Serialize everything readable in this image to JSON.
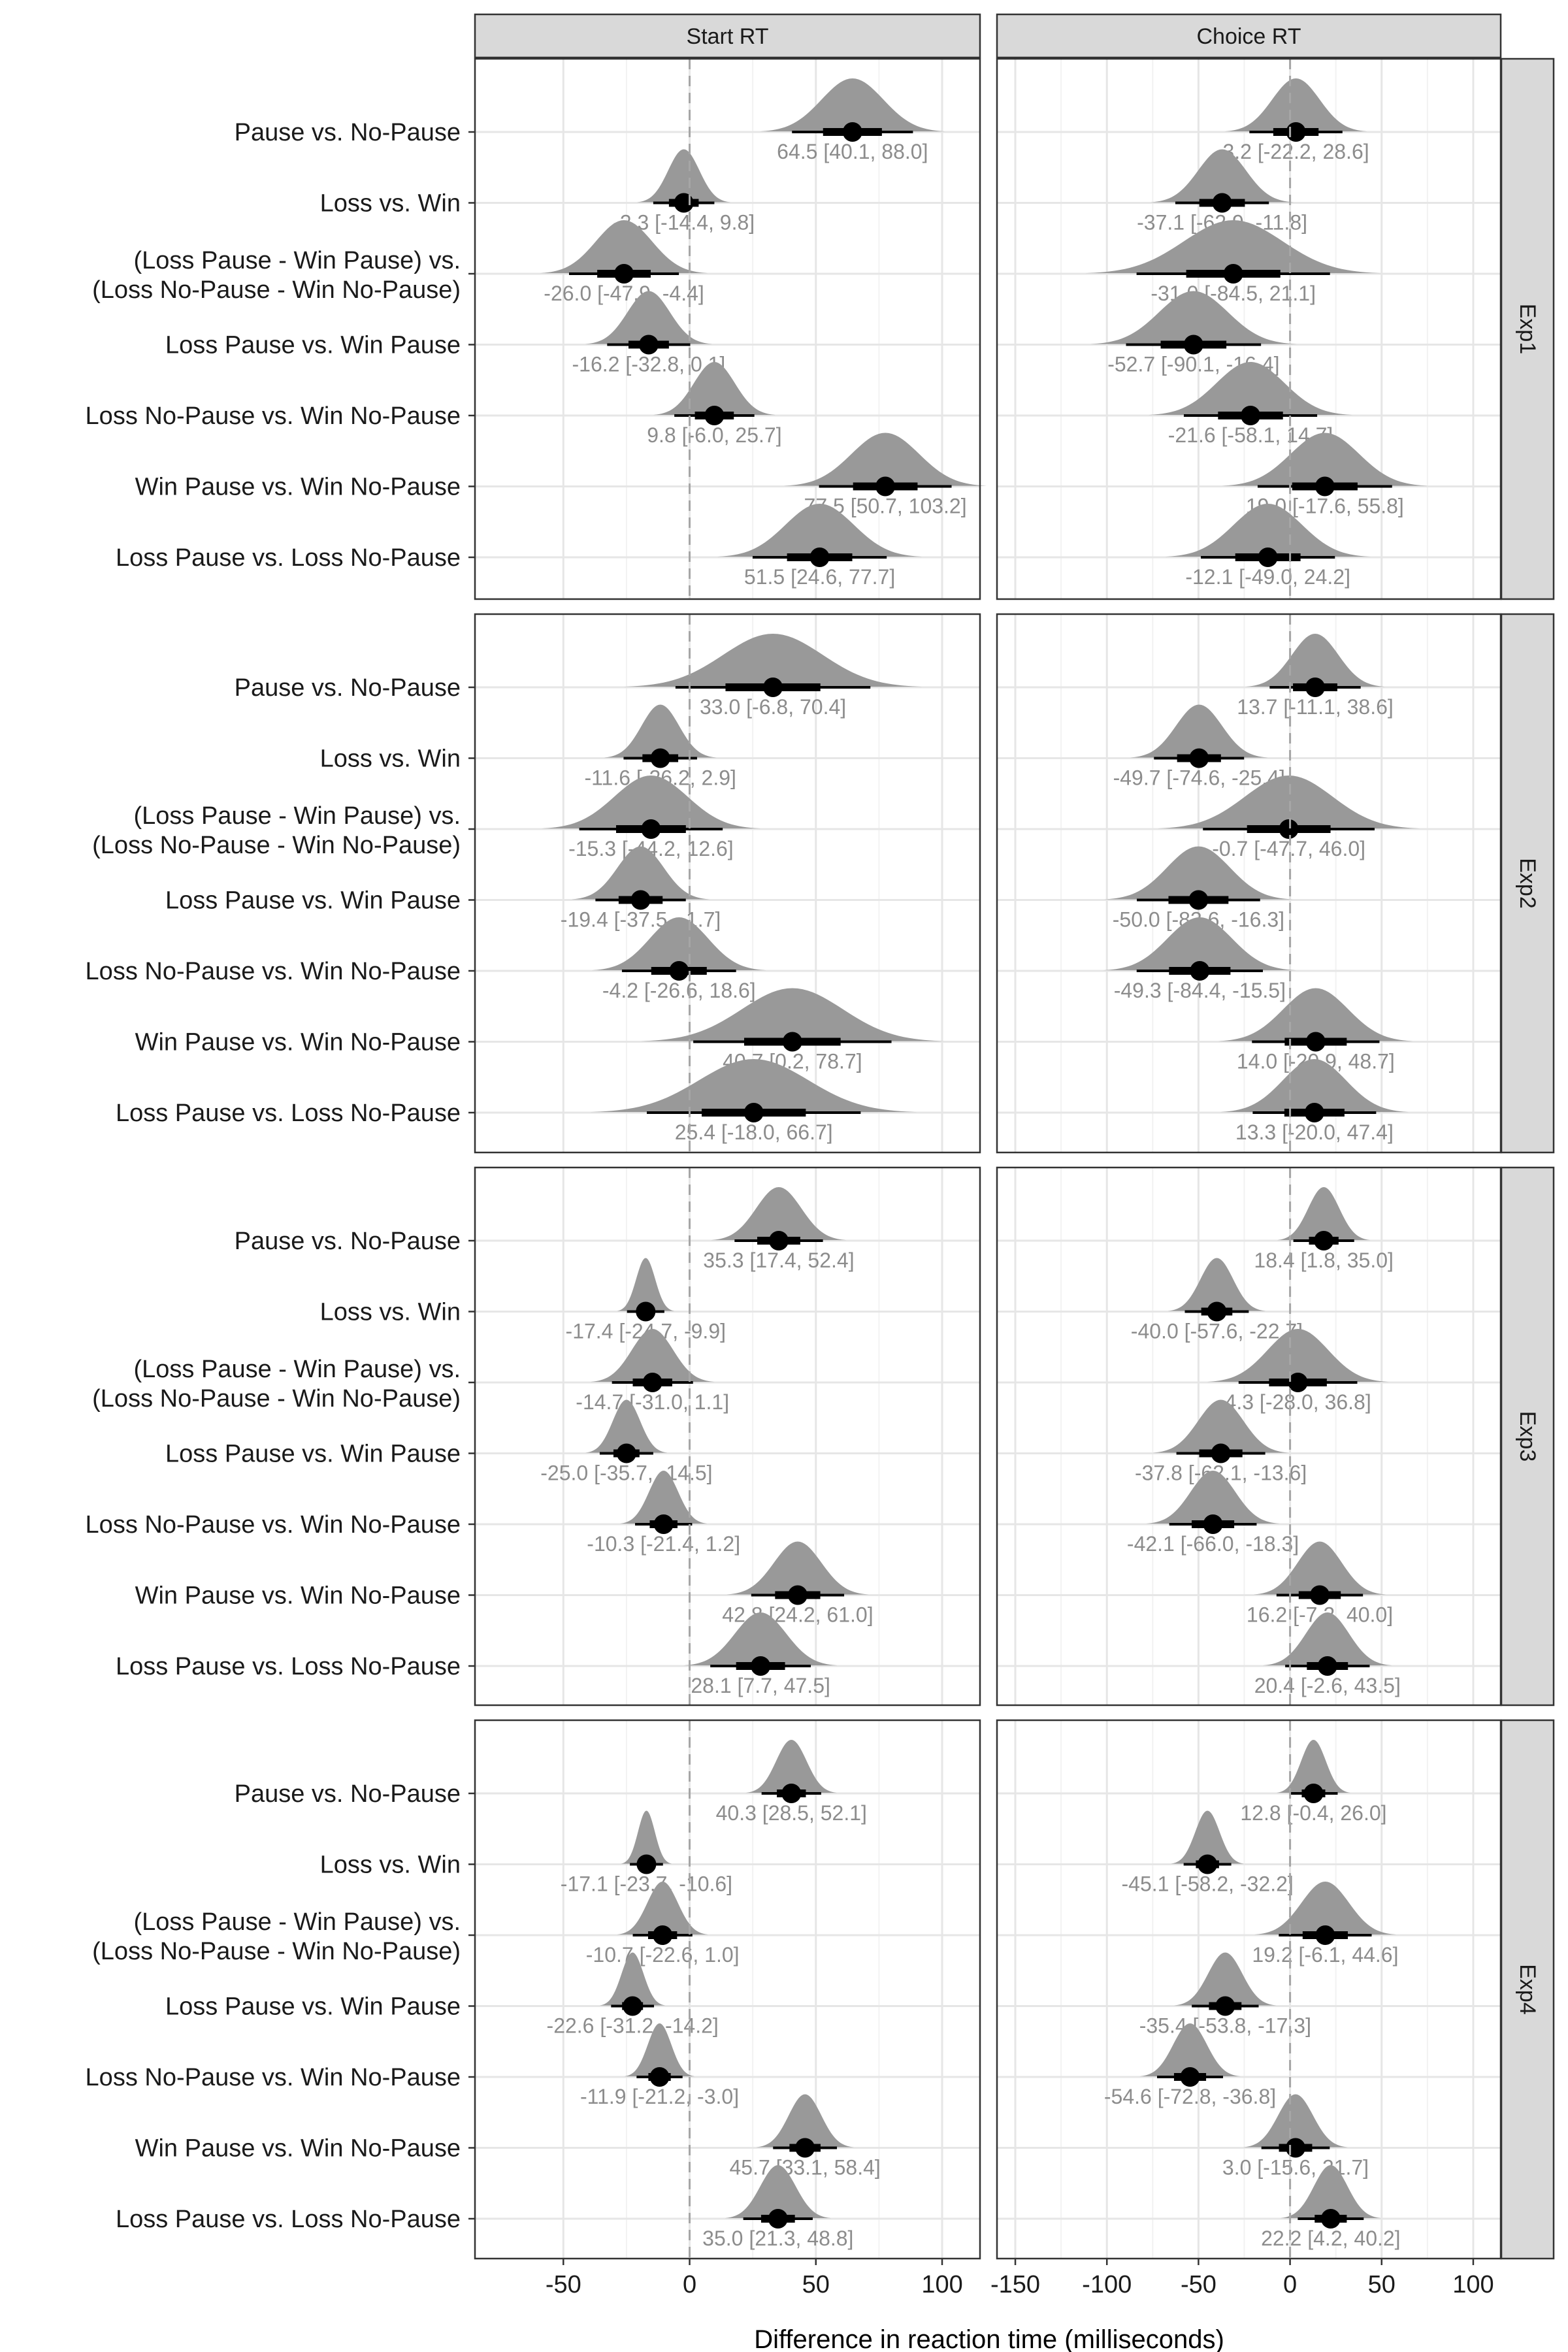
{
  "chart_data": {
    "type": "interval",
    "facet_columns": [
      {
        "label": "Start RT",
        "xlim": [
          -85,
          115
        ],
        "ticks": [
          -50,
          0,
          50,
          100
        ]
      },
      {
        "label": "Choice RT",
        "xlim": [
          -160,
          115
        ],
        "ticks": [
          -150,
          -100,
          -50,
          0,
          50,
          100
        ]
      }
    ],
    "facet_rows": [
      "Exp1",
      "Exp2",
      "Exp3",
      "Exp4"
    ],
    "contrasts": [
      "Pause vs. No-Pause",
      "Loss vs. Win",
      "(Loss Pause - Win Pause) vs.|(Loss No-Pause - Win No-Pause)",
      "Loss Pause vs. Win Pause",
      "Loss No-Pause vs. Win No-Pause",
      "Win Pause vs. Win No-Pause",
      "Loss Pause vs. Loss No-Pause"
    ],
    "xlabel": "Difference in reaction time (milliseconds)",
    "ylabel": "",
    "reference_line": 0,
    "grid": true,
    "panels": [
      {
        "row": "Exp1",
        "col": "Start RT",
        "estimates": [
          {
            "median": 64.5,
            "low": 40.1,
            "high": 88.0,
            "label": "64.5 [40.1, 88.0]"
          },
          {
            "median": -2.3,
            "low": -14.4,
            "high": 9.8,
            "label": "-2.3 [-14.4, 9.8]"
          },
          {
            "median": -26.0,
            "low": -47.9,
            "high": -4.4,
            "label": "-26.0 [-47.9, -4.4]"
          },
          {
            "median": -16.2,
            "low": -32.8,
            "high": 0.1,
            "label": "-16.2 [-32.8, 0.1]"
          },
          {
            "median": 9.8,
            "low": -6.0,
            "high": 25.7,
            "label": "9.8 [-6.0, 25.7]"
          },
          {
            "median": 77.5,
            "low": 50.7,
            "high": 103.2,
            "label": "77.5 [50.7, 103.2]"
          },
          {
            "median": 51.5,
            "low": 24.6,
            "high": 77.7,
            "label": "51.5 [24.6, 77.7]"
          }
        ]
      },
      {
        "row": "Exp1",
        "col": "Choice RT",
        "estimates": [
          {
            "median": 3.2,
            "low": -22.2,
            "high": 28.6,
            "label": "3.2 [-22.2, 28.6]"
          },
          {
            "median": -37.1,
            "low": -62.9,
            "high": -11.8,
            "label": "-37.1 [-62.9, -11.8]"
          },
          {
            "median": -31.0,
            "low": -84.5,
            "high": 21.1,
            "label": "-31.0 [-84.5, 21.1]"
          },
          {
            "median": -52.7,
            "low": -90.1,
            "high": -16.4,
            "label": "-52.7 [-90.1, -16.4]"
          },
          {
            "median": -21.6,
            "low": -58.1,
            "high": 14.7,
            "label": "-21.6 [-58.1, 14.7]"
          },
          {
            "median": 19.0,
            "low": -17.6,
            "high": 55.8,
            "label": "19.0 [-17.6, 55.8]"
          },
          {
            "median": -12.1,
            "low": -49.0,
            "high": 24.2,
            "label": "-12.1 [-49.0, 24.2]"
          }
        ]
      },
      {
        "row": "Exp2",
        "col": "Start RT",
        "estimates": [
          {
            "median": 33.0,
            "low": -6.8,
            "high": 70.4,
            "label": "33.0 [-6.8, 70.4]"
          },
          {
            "median": -11.6,
            "low": -26.2,
            "high": 2.9,
            "label": "-11.6 [-26.2, 2.9]"
          },
          {
            "median": -15.3,
            "low": -44.2,
            "high": 12.6,
            "label": "-15.3 [-44.2, 12.6]"
          },
          {
            "median": -19.4,
            "low": -37.5,
            "high": -1.7,
            "label": "-19.4 [-37.5, -1.7]"
          },
          {
            "median": -4.2,
            "low": -26.6,
            "high": 18.6,
            "label": "-4.2 [-26.6, 18.6]"
          },
          {
            "median": 40.7,
            "low": 0.2,
            "high": 78.7,
            "label": "40.7 [0.2, 78.7]"
          },
          {
            "median": 25.4,
            "low": -18.0,
            "high": 66.7,
            "label": "25.4 [-18.0, 66.7]"
          }
        ]
      },
      {
        "row": "Exp2",
        "col": "Choice RT",
        "estimates": [
          {
            "median": 13.7,
            "low": -11.1,
            "high": 38.6,
            "label": "13.7 [-11.1, 38.6]"
          },
          {
            "median": -49.7,
            "low": -74.6,
            "high": -25.4,
            "label": "-49.7 [-74.6, -25.4]"
          },
          {
            "median": -0.7,
            "low": -47.7,
            "high": 46.0,
            "label": "-0.7 [-47.7, 46.0]"
          },
          {
            "median": -50.0,
            "low": -83.6,
            "high": -16.3,
            "label": "-50.0 [-83.6, -16.3]"
          },
          {
            "median": -49.3,
            "low": -84.4,
            "high": -15.5,
            "label": "-49.3 [-84.4, -15.5]"
          },
          {
            "median": 14.0,
            "low": -20.9,
            "high": 48.7,
            "label": "14.0 [-20.9, 48.7]"
          },
          {
            "median": 13.3,
            "low": -20.0,
            "high": 47.4,
            "label": "13.3 [-20.0, 47.4]"
          }
        ]
      },
      {
        "row": "Exp3",
        "col": "Start RT",
        "estimates": [
          {
            "median": 35.3,
            "low": 17.4,
            "high": 52.4,
            "label": "35.3 [17.4, 52.4]"
          },
          {
            "median": -17.4,
            "low": -24.7,
            "high": -9.9,
            "label": "-17.4 [-24.7, -9.9]"
          },
          {
            "median": -14.7,
            "low": -31.0,
            "high": 1.1,
            "label": "-14.7 [-31.0, 1.1]"
          },
          {
            "median": -25.0,
            "low": -35.7,
            "high": -14.5,
            "label": "-25.0 [-35.7, -14.5]"
          },
          {
            "median": -10.3,
            "low": -21.4,
            "high": 1.2,
            "label": "-10.3 [-21.4, 1.2]"
          },
          {
            "median": 42.8,
            "low": 24.2,
            "high": 61.0,
            "label": "42.8 [24.2, 61.0]"
          },
          {
            "median": 28.1,
            "low": 7.7,
            "high": 47.5,
            "label": "28.1 [7.7, 47.5]"
          }
        ]
      },
      {
        "row": "Exp3",
        "col": "Choice RT",
        "estimates": [
          {
            "median": 18.4,
            "low": 1.8,
            "high": 35.0,
            "label": "18.4 [1.8, 35.0]"
          },
          {
            "median": -40.0,
            "low": -57.6,
            "high": -22.7,
            "label": "-40.0 [-57.6, -22.7]"
          },
          {
            "median": 4.3,
            "low": -28.0,
            "high": 36.8,
            "label": "4.3 [-28.0, 36.8]"
          },
          {
            "median": -37.8,
            "low": -62.1,
            "high": -13.6,
            "label": "-37.8 [-62.1, -13.6]"
          },
          {
            "median": -42.1,
            "low": -66.0,
            "high": -18.3,
            "label": "-42.1 [-66.0, -18.3]"
          },
          {
            "median": 16.2,
            "low": -7.2,
            "high": 40.0,
            "label": "16.2 [-7.2, 40.0]"
          },
          {
            "median": 20.4,
            "low": -2.6,
            "high": 43.5,
            "label": "20.4 [-2.6, 43.5]"
          }
        ]
      },
      {
        "row": "Exp4",
        "col": "Start RT",
        "estimates": [
          {
            "median": 40.3,
            "low": 28.5,
            "high": 52.1,
            "label": "40.3 [28.5, 52.1]"
          },
          {
            "median": -17.1,
            "low": -23.7,
            "high": -10.6,
            "label": "-17.1 [-23.7, -10.6]"
          },
          {
            "median": -10.7,
            "low": -22.6,
            "high": 1.0,
            "label": "-10.7 [-22.6, 1.0]"
          },
          {
            "median": -22.6,
            "low": -31.2,
            "high": -14.2,
            "label": "-22.6 [-31.2, -14.2]"
          },
          {
            "median": -11.9,
            "low": -21.2,
            "high": -3.0,
            "label": "-11.9 [-21.2, -3.0]"
          },
          {
            "median": 45.7,
            "low": 33.1,
            "high": 58.4,
            "label": "45.7 [33.1, 58.4]"
          },
          {
            "median": 35.0,
            "low": 21.3,
            "high": 48.8,
            "label": "35.0 [21.3, 48.8]"
          }
        ]
      },
      {
        "row": "Exp4",
        "col": "Choice RT",
        "estimates": [
          {
            "median": 12.8,
            "low": -0.4,
            "high": 26.0,
            "label": "12.8 [-0.4, 26.0]"
          },
          {
            "median": -45.1,
            "low": -58.2,
            "high": -32.2,
            "label": "-45.1 [-58.2, -32.2]"
          },
          {
            "median": 19.2,
            "low": -6.1,
            "high": 44.6,
            "label": "19.2 [-6.1, 44.6]"
          },
          {
            "median": -35.4,
            "low": -53.8,
            "high": -17.3,
            "label": "-35.4 [-53.8, -17.3]"
          },
          {
            "median": -54.6,
            "low": -72.8,
            "high": -36.8,
            "label": "-54.6 [-72.8, -36.8]"
          },
          {
            "median": 3.0,
            "low": -15.6,
            "high": 21.7,
            "label": "3.0 [-15.6, 21.7]"
          },
          {
            "median": 22.2,
            "low": 4.2,
            "high": 40.2,
            "label": "22.2 [4.2, 40.2]"
          }
        ]
      }
    ]
  },
  "colors": {
    "density": "#999999",
    "point": "#000000",
    "interval": "#000000",
    "value_label": "#8c8c8c",
    "strip": "#d9d9d9",
    "grid_major": "#e6e6e6",
    "grid_minor": "#f2f2f2",
    "reference_line": "#a6a6a6"
  }
}
